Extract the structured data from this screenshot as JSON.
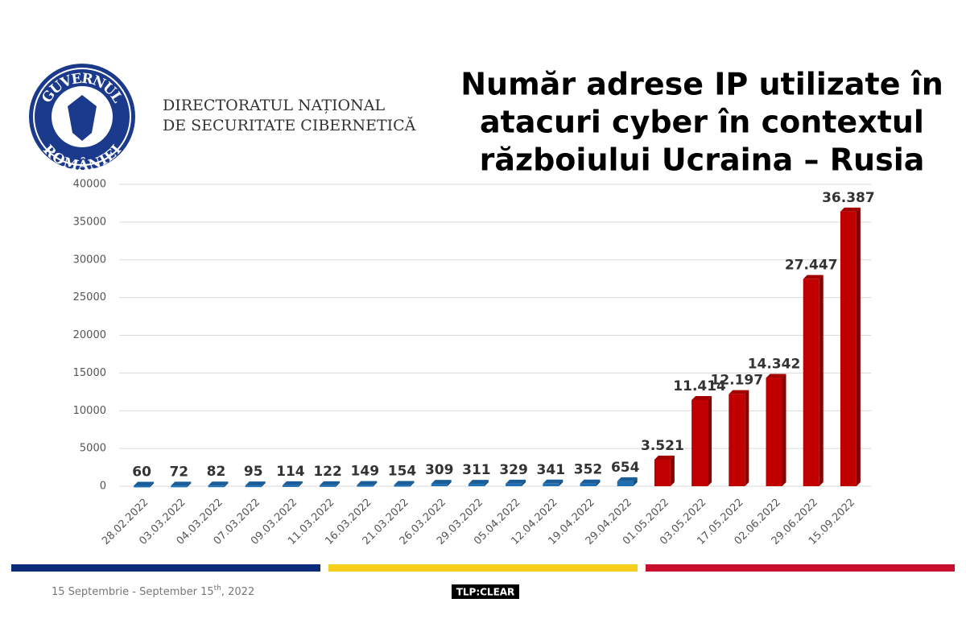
{
  "header": {
    "logo_top": "GUVERNUL",
    "logo_bottom": "ROMÂNIEI",
    "org_line1": "DIRECTORATUL NAȚIONAL",
    "org_line2": "DE SECURITATE CIBERNETICĂ"
  },
  "chart_data": {
    "type": "bar",
    "title": [
      "Număr adrese IP utilizate în",
      "atacuri cyber în contextul",
      "războiului Ucraina – Rusia"
    ],
    "categories": [
      "28.02.2022",
      "03.03.2022",
      "04.03.2022",
      "07.03.2022",
      "09.03.2022",
      "11.03.2022",
      "16.03.2022",
      "21.03.2022",
      "26.03.2022",
      "29.03.2022",
      "05.04.2022",
      "12.04.2022",
      "19.04.2022",
      "29.04.2022",
      "01.05.2022",
      "03.05.2022",
      "17.05.2022",
      "02.06.2022",
      "29.06.2022",
      "15.09.2022"
    ],
    "values": [
      60,
      72,
      82,
      95,
      114,
      122,
      149,
      154,
      309,
      311,
      329,
      341,
      352,
      654,
      3521,
      11414,
      12197,
      14342,
      27447,
      36387
    ],
    "value_labels": [
      "60",
      "72",
      "82",
      "95",
      "114",
      "122",
      "149",
      "154",
      "309",
      "311",
      "329",
      "341",
      "352",
      "654",
      "3.521",
      "11.414",
      "12.197",
      "14.342",
      "27.447",
      "36.387"
    ],
    "colors": [
      "#1f6fb4",
      "#1f6fb4",
      "#1f6fb4",
      "#1f6fb4",
      "#1f6fb4",
      "#1f6fb4",
      "#1f6fb4",
      "#1f6fb4",
      "#1f6fb4",
      "#1f6fb4",
      "#1f6fb4",
      "#1f6fb4",
      "#1f6fb4",
      "#1f6fb4",
      "#c00000",
      "#c00000",
      "#c00000",
      "#c00000",
      "#c00000",
      "#c00000"
    ],
    "ylim": [
      0,
      40000
    ],
    "yticks": [
      0,
      5000,
      10000,
      15000,
      20000,
      25000,
      30000,
      35000,
      40000
    ],
    "grid": true
  },
  "footer": {
    "date_main": "15 Septembrie - September 15",
    "date_sup": "th",
    "date_end": ", 2022",
    "tlp": "TLP:CLEAR"
  }
}
